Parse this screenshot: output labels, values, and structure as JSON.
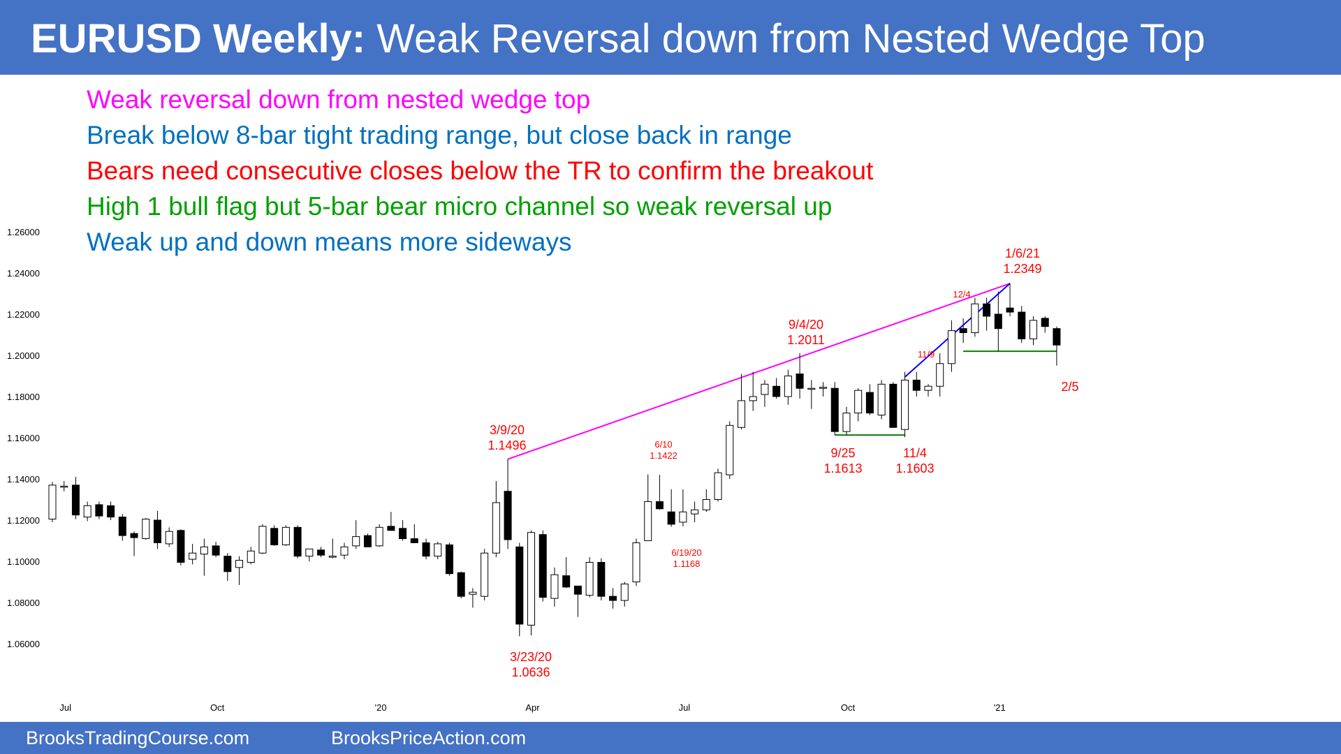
{
  "header": {
    "title_bold": "EURUSD Weekly:",
    "title_rest": " Weak Reversal down from Nested Wedge Top",
    "color": "#4472c4"
  },
  "notes": [
    {
      "text": "Weak reversal down from nested wedge top",
      "color": "#ff00ff"
    },
    {
      "text": "Break below 8-bar tight trading range, but close back in range",
      "color": "#0070c0"
    },
    {
      "text": "Bears need consecutive closes below the TR to confirm the breakout",
      "color": "#ff0000"
    },
    {
      "text": "High 1 bull flag but 5-bar bear micro channel so weak reversal up",
      "color": "#00a000"
    },
    {
      "text": "Weak up and down means more sideways",
      "color": "#0070c0"
    }
  ],
  "footer": {
    "left": "BrooksTradingCourse.com",
    "right": "BrooksPriceAction.com"
  },
  "chart_data": {
    "type": "candlestick",
    "title": "EURUSD Weekly",
    "ylim": [
      1.05,
      1.265
    ],
    "y_ticks": [
      "1.26000",
      "1.24000",
      "1.22000",
      "1.20000",
      "1.18000",
      "1.16000",
      "1.14000",
      "1.12000",
      "1.10000",
      "1.08000",
      "1.06000"
    ],
    "x_ticks": [
      {
        "label": "Jul",
        "index": 1
      },
      {
        "label": "Oct",
        "index": 14
      },
      {
        "label": "'20",
        "index": 28
      },
      {
        "label": "Apr",
        "index": 41
      },
      {
        "label": "Jul",
        "index": 54
      },
      {
        "label": "Oct",
        "index": 68
      },
      {
        "label": "'21",
        "index": 81
      }
    ],
    "candles": [
      {
        "o": 1.1205,
        "h": 1.1385,
        "l": 1.119,
        "c": 1.137
      },
      {
        "o": 1.136,
        "h": 1.139,
        "l": 1.134,
        "c": 1.1365
      },
      {
        "o": 1.137,
        "h": 1.141,
        "l": 1.1205,
        "c": 1.1225
      },
      {
        "o": 1.1215,
        "h": 1.129,
        "l": 1.1195,
        "c": 1.127
      },
      {
        "o": 1.1275,
        "h": 1.129,
        "l": 1.1205,
        "c": 1.122
      },
      {
        "o": 1.127,
        "h": 1.129,
        "l": 1.12,
        "c": 1.1215
      },
      {
        "o": 1.1215,
        "h": 1.123,
        "l": 1.11,
        "c": 1.1125
      },
      {
        "o": 1.1135,
        "h": 1.1145,
        "l": 1.1025,
        "c": 1.1115
      },
      {
        "o": 1.111,
        "h": 1.121,
        "l": 1.1105,
        "c": 1.1205
      },
      {
        "o": 1.12,
        "h": 1.1245,
        "l": 1.106,
        "c": 1.109
      },
      {
        "o": 1.1085,
        "h": 1.1165,
        "l": 1.107,
        "c": 1.1145
      },
      {
        "o": 1.115,
        "h": 1.1155,
        "l": 1.098,
        "c": 1.0995
      },
      {
        "o": 1.101,
        "h": 1.1085,
        "l": 1.0985,
        "c": 1.104
      },
      {
        "o": 1.1035,
        "h": 1.111,
        "l": 1.093,
        "c": 1.107
      },
      {
        "o": 1.1075,
        "h": 1.1095,
        "l": 1.102,
        "c": 1.103
      },
      {
        "o": 1.1025,
        "h": 1.104,
        "l": 1.0905,
        "c": 1.095
      },
      {
        "o": 1.097,
        "h": 1.1025,
        "l": 1.0885,
        "c": 1.1005
      },
      {
        "o": 1.0995,
        "h": 1.107,
        "l": 1.0985,
        "c": 1.105
      },
      {
        "o": 1.104,
        "h": 1.118,
        "l": 1.1035,
        "c": 1.117
      },
      {
        "o": 1.116,
        "h": 1.1175,
        "l": 1.1075,
        "c": 1.108
      },
      {
        "o": 1.108,
        "h": 1.1175,
        "l": 1.1075,
        "c": 1.1165
      },
      {
        "o": 1.1165,
        "h": 1.1175,
        "l": 1.1015,
        "c": 1.1025
      },
      {
        "o": 1.1025,
        "h": 1.106,
        "l": 1.1,
        "c": 1.106
      },
      {
        "o": 1.1055,
        "h": 1.107,
        "l": 1.102,
        "c": 1.103
      },
      {
        "o": 1.102,
        "h": 1.111,
        "l": 1.1015,
        "c": 1.1025
      },
      {
        "o": 1.103,
        "h": 1.109,
        "l": 1.101,
        "c": 1.107
      },
      {
        "o": 1.1075,
        "h": 1.12,
        "l": 1.106,
        "c": 1.112
      },
      {
        "o": 1.1125,
        "h": 1.1135,
        "l": 1.107,
        "c": 1.107
      },
      {
        "o": 1.1075,
        "h": 1.118,
        "l": 1.107,
        "c": 1.1165
      },
      {
        "o": 1.117,
        "h": 1.124,
        "l": 1.115,
        "c": 1.115
      },
      {
        "o": 1.116,
        "h": 1.12,
        "l": 1.11,
        "c": 1.111
      },
      {
        "o": 1.111,
        "h": 1.118,
        "l": 1.109,
        "c": 1.109
      },
      {
        "o": 1.109,
        "h": 1.111,
        "l": 1.101,
        "c": 1.1025
      },
      {
        "o": 1.1025,
        "h": 1.1095,
        "l": 1.101,
        "c": 1.1085
      },
      {
        "o": 1.108,
        "h": 1.109,
        "l": 1.093,
        "c": 1.094
      },
      {
        "o": 1.0945,
        "h": 1.095,
        "l": 1.082,
        "c": 1.083
      },
      {
        "o": 1.084,
        "h": 1.087,
        "l": 1.0775,
        "c": 1.085
      },
      {
        "o": 1.083,
        "h": 1.106,
        "l": 1.081,
        "c": 1.104
      },
      {
        "o": 1.104,
        "h": 1.139,
        "l": 1.102,
        "c": 1.1285
      },
      {
        "o": 1.134,
        "h": 1.1496,
        "l": 1.106,
        "c": 1.1105
      },
      {
        "o": 1.107,
        "h": 1.109,
        "l": 1.0636,
        "c": 1.0695
      },
      {
        "o": 1.069,
        "h": 1.115,
        "l": 1.064,
        "c": 1.114
      },
      {
        "o": 1.113,
        "h": 1.115,
        "l": 1.0805,
        "c": 1.0825
      },
      {
        "o": 1.082,
        "h": 1.097,
        "l": 1.078,
        "c": 1.0935
      },
      {
        "o": 1.093,
        "h": 1.102,
        "l": 1.087,
        "c": 1.0875
      },
      {
        "o": 1.088,
        "h": 1.088,
        "l": 1.073,
        "c": 1.084
      },
      {
        "o": 1.0835,
        "h": 1.102,
        "l": 1.0825,
        "c": 1.0995
      },
      {
        "o": 1.0995,
        "h": 1.1015,
        "l": 1.081,
        "c": 1.083
      },
      {
        "o": 1.083,
        "h": 1.087,
        "l": 1.077,
        "c": 1.081
      },
      {
        "o": 1.081,
        "h": 1.09,
        "l": 1.078,
        "c": 1.089
      },
      {
        "o": 1.09,
        "h": 1.111,
        "l": 1.088,
        "c": 1.109
      },
      {
        "o": 1.11,
        "h": 1.1422,
        "l": 1.11,
        "c": 1.129
      },
      {
        "o": 1.129,
        "h": 1.142,
        "l": 1.125,
        "c": 1.1255
      },
      {
        "o": 1.124,
        "h": 1.135,
        "l": 1.1168,
        "c": 1.118
      },
      {
        "o": 1.119,
        "h": 1.135,
        "l": 1.117,
        "c": 1.124
      },
      {
        "o": 1.123,
        "h": 1.129,
        "l": 1.119,
        "c": 1.125
      },
      {
        "o": 1.125,
        "h": 1.135,
        "l": 1.124,
        "c": 1.13
      },
      {
        "o": 1.13,
        "h": 1.145,
        "l": 1.129,
        "c": 1.143
      },
      {
        "o": 1.142,
        "h": 1.168,
        "l": 1.14,
        "c": 1.166
      },
      {
        "o": 1.165,
        "h": 1.191,
        "l": 1.164,
        "c": 1.178
      },
      {
        "o": 1.178,
        "h": 1.192,
        "l": 1.173,
        "c": 1.18
      },
      {
        "o": 1.181,
        "h": 1.188,
        "l": 1.175,
        "c": 1.186
      },
      {
        "o": 1.185,
        "h": 1.189,
        "l": 1.179,
        "c": 1.18
      },
      {
        "o": 1.18,
        "h": 1.193,
        "l": 1.176,
        "c": 1.19
      },
      {
        "o": 1.191,
        "h": 1.2011,
        "l": 1.179,
        "c": 1.184
      },
      {
        "o": 1.184,
        "h": 1.188,
        "l": 1.174,
        "c": 1.184
      },
      {
        "o": 1.184,
        "h": 1.187,
        "l": 1.18,
        "c": 1.1845
      },
      {
        "o": 1.184,
        "h": 1.187,
        "l": 1.1613,
        "c": 1.163
      },
      {
        "o": 1.163,
        "h": 1.175,
        "l": 1.1613,
        "c": 1.172
      },
      {
        "o": 1.172,
        "h": 1.184,
        "l": 1.168,
        "c": 1.183
      },
      {
        "o": 1.182,
        "h": 1.186,
        "l": 1.171,
        "c": 1.172
      },
      {
        "o": 1.171,
        "h": 1.188,
        "l": 1.169,
        "c": 1.186
      },
      {
        "o": 1.186,
        "h": 1.187,
        "l": 1.165,
        "c": 1.165
      },
      {
        "o": 1.164,
        "h": 1.192,
        "l": 1.1603,
        "c": 1.188
      },
      {
        "o": 1.188,
        "h": 1.192,
        "l": 1.18,
        "c": 1.183
      },
      {
        "o": 1.183,
        "h": 1.186,
        "l": 1.18,
        "c": 1.185
      },
      {
        "o": 1.185,
        "h": 1.201,
        "l": 1.18,
        "c": 1.196
      },
      {
        "o": 1.196,
        "h": 1.217,
        "l": 1.192,
        "c": 1.212
      },
      {
        "o": 1.213,
        "h": 1.218,
        "l": 1.206,
        "c": 1.211
      },
      {
        "o": 1.211,
        "h": 1.228,
        "l": 1.209,
        "c": 1.225
      },
      {
        "o": 1.225,
        "h": 1.228,
        "l": 1.212,
        "c": 1.219
      },
      {
        "o": 1.22,
        "h": 1.231,
        "l": 1.202,
        "c": 1.213
      },
      {
        "o": 1.223,
        "h": 1.2349,
        "l": 1.219,
        "c": 1.221
      },
      {
        "o": 1.221,
        "h": 1.224,
        "l": 1.206,
        "c": 1.208
      },
      {
        "o": 1.208,
        "h": 1.219,
        "l": 1.205,
        "c": 1.217
      },
      {
        "o": 1.218,
        "h": 1.219,
        "l": 1.211,
        "c": 1.214
      },
      {
        "o": 1.213,
        "h": 1.214,
        "l": 1.195,
        "c": 1.205
      }
    ],
    "annotations": [
      {
        "lines": [
          "3/9/20",
          "1.1496"
        ],
        "size": "large"
      },
      {
        "lines": [
          "3/23/20",
          "1.0636"
        ],
        "size": "large"
      },
      {
        "lines": [
          "6/10",
          "1.1422"
        ],
        "size": "small"
      },
      {
        "lines": [
          "6/19/20",
          "1.1168"
        ],
        "size": "small"
      },
      {
        "lines": [
          "9/4/20",
          "1.2011"
        ],
        "size": "large"
      },
      {
        "lines": [
          "9/25",
          "1.1613"
        ],
        "size": "large"
      },
      {
        "lines": [
          "11/4",
          "1.1603"
        ],
        "size": "large"
      },
      {
        "lines": [
          "11/9"
        ],
        "size": "small"
      },
      {
        "lines": [
          "12/4"
        ],
        "size": "small"
      },
      {
        "lines": [
          "1/6/21",
          "1.2349"
        ],
        "size": "large"
      },
      {
        "lines": [
          "2/5"
        ],
        "size": "large"
      }
    ],
    "lines": [
      {
        "name": "wedge-trendline",
        "color": "#ff00ff",
        "from": {
          "index": 39,
          "y": 1.1496
        },
        "to": {
          "index": 82,
          "y": 1.2349
        }
      },
      {
        "name": "micro-channel-line",
        "color": "#0000ff",
        "from": {
          "index": 73,
          "y": 1.1895
        },
        "to": {
          "index": 82,
          "y": 1.2349
        }
      },
      {
        "name": "double-bottom-support",
        "color": "#008000",
        "from": {
          "index": 67,
          "y": 1.1613
        },
        "to": {
          "index": 73,
          "y": 1.1613
        }
      },
      {
        "name": "tight-range-support",
        "color": "#008000",
        "from": {
          "index": 78,
          "y": 1.202
        },
        "to": {
          "index": 86,
          "y": 1.202
        }
      }
    ],
    "bull_color": "#ffffff",
    "bear_color": "#000000"
  }
}
